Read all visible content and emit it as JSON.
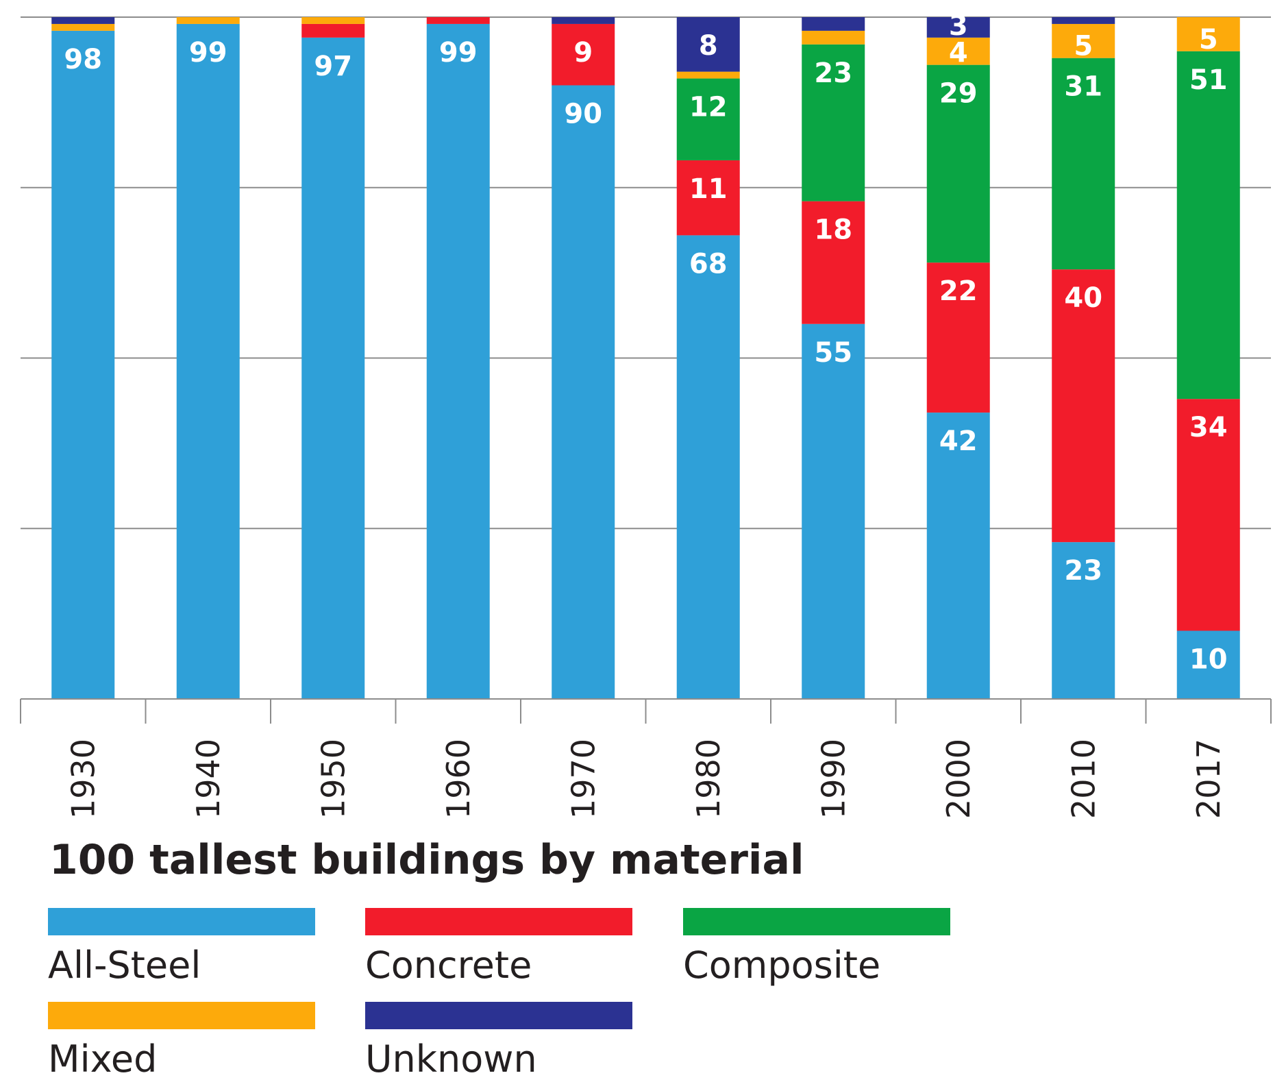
{
  "chart_data": {
    "type": "bar",
    "stacked": true,
    "orientation": "vertical",
    "title": "100 tallest buildings by material",
    "categories": [
      "1930",
      "1940",
      "1950",
      "1960",
      "1970",
      "1980",
      "1990",
      "2000",
      "2010",
      "2017"
    ],
    "ylim": [
      0,
      100
    ],
    "y_gridlines": [
      25,
      50,
      75,
      100
    ],
    "grid": true,
    "legend_position": "bottom",
    "series": [
      {
        "key": "steel",
        "name": "All-Steel",
        "color": "#2fa0d8",
        "values": [
          98,
          99,
          97,
          99,
          90,
          68,
          55,
          42,
          23,
          10
        ]
      },
      {
        "key": "concrete",
        "name": "Concrete",
        "color": "#f21c2b",
        "values": [
          0,
          0,
          2,
          1,
          9,
          11,
          18,
          22,
          40,
          34
        ]
      },
      {
        "key": "composite",
        "name": "Composite",
        "color": "#0aa544",
        "values": [
          0,
          0,
          0,
          0,
          0,
          12,
          23,
          29,
          31,
          51
        ]
      },
      {
        "key": "mixed",
        "name": "Mixed",
        "color": "#fdaa0b",
        "values": [
          1,
          1,
          1,
          0,
          0,
          1,
          2,
          4,
          5,
          5
        ]
      },
      {
        "key": "unknown",
        "name": "Unknown",
        "color": "#2b3292",
        "values": [
          1,
          0,
          0,
          0,
          1,
          8,
          2,
          3,
          1,
          0
        ]
      }
    ],
    "data_labels": [
      {
        "category": "1930",
        "series": "steel",
        "text": "98"
      },
      {
        "category": "1940",
        "series": "steel",
        "text": "99"
      },
      {
        "category": "1950",
        "series": "steel",
        "text": "97"
      },
      {
        "category": "1960",
        "series": "steel",
        "text": "99"
      },
      {
        "category": "1970",
        "series": "steel",
        "text": "90"
      },
      {
        "category": "1970",
        "series": "concrete",
        "text": "9"
      },
      {
        "category": "1980",
        "series": "steel",
        "text": "68"
      },
      {
        "category": "1980",
        "series": "concrete",
        "text": "11"
      },
      {
        "category": "1980",
        "series": "composite",
        "text": "12"
      },
      {
        "category": "1980",
        "series": "unknown",
        "text": "8"
      },
      {
        "category": "1990",
        "series": "steel",
        "text": "55"
      },
      {
        "category": "1990",
        "series": "concrete",
        "text": "18"
      },
      {
        "category": "1990",
        "series": "composite",
        "text": "23"
      },
      {
        "category": "2000",
        "series": "steel",
        "text": "42"
      },
      {
        "category": "2000",
        "series": "concrete",
        "text": "22"
      },
      {
        "category": "2000",
        "series": "composite",
        "text": "29"
      },
      {
        "category": "2000",
        "series": "mixed",
        "text": "4"
      },
      {
        "category": "2000",
        "series": "unknown",
        "text": "3"
      },
      {
        "category": "2010",
        "series": "steel",
        "text": "23"
      },
      {
        "category": "2010",
        "series": "concrete",
        "text": "40"
      },
      {
        "category": "2010",
        "series": "composite",
        "text": "31"
      },
      {
        "category": "2010",
        "series": "mixed",
        "text": "5"
      },
      {
        "category": "2017",
        "series": "steel",
        "text": "10"
      },
      {
        "category": "2017",
        "series": "concrete",
        "text": "34"
      },
      {
        "category": "2017",
        "series": "composite",
        "text": "51"
      },
      {
        "category": "2017",
        "series": "mixed",
        "text": "5"
      }
    ],
    "legend": [
      {
        "series": "steel",
        "label": "All-Steel"
      },
      {
        "series": "concrete",
        "label": "Concrete"
      },
      {
        "series": "composite",
        "label": "Composite"
      },
      {
        "series": "mixed",
        "label": "Mixed"
      },
      {
        "series": "unknown",
        "label": "Unknown"
      }
    ],
    "colors": {
      "gridline": "#8c8c8c",
      "axis": "#8c8c8c",
      "text": "#231f20",
      "label": "#ffffff"
    }
  }
}
